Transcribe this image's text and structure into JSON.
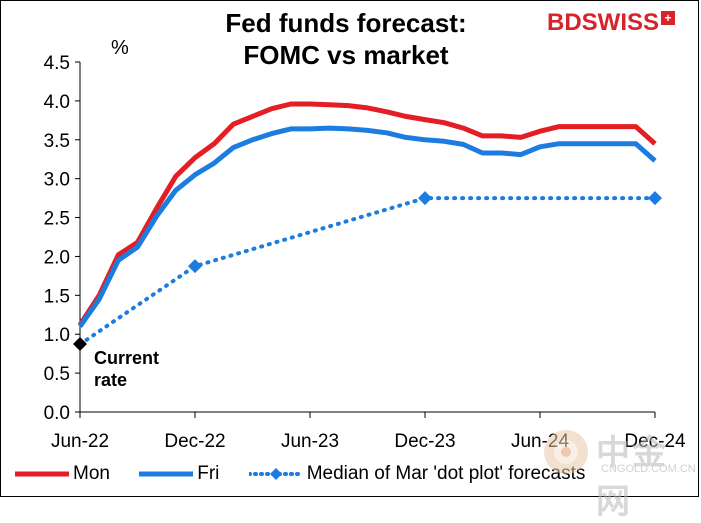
{
  "title_line1": "Fed funds forecast:",
  "title_line2": "FOMC vs market",
  "unit": "%",
  "logo": {
    "text": "BDSWISS",
    "mark": "+"
  },
  "watermark": {
    "text": "中金网",
    "sub": "CNGOLD.COM.CN"
  },
  "colors": {
    "mon": "#e31e24",
    "fri": "#1c7ce0",
    "median": "#1c7ce0",
    "current": "#000000"
  },
  "chart_data": {
    "type": "line",
    "ylabel": "%",
    "ylim": [
      0,
      4.5
    ],
    "yticks": [
      0.0,
      0.5,
      1.0,
      1.5,
      2.0,
      2.5,
      3.0,
      3.5,
      4.0,
      4.5
    ],
    "ytick_labels": [
      "0.0",
      "0.5",
      "1.0",
      "1.5",
      "2.0",
      "2.5",
      "3.0",
      "3.5",
      "4.0",
      "4.5"
    ],
    "xlim": [
      0,
      30
    ],
    "xticks": [
      0,
      6,
      12,
      18,
      24,
      30
    ],
    "xtick_labels": [
      "Jun-22",
      "Dec-22",
      "Jun-23",
      "Dec-23",
      "Jun-24",
      "Dec-24"
    ],
    "series": [
      {
        "name": "Mon",
        "style": "solid",
        "x": [
          0,
          1,
          2,
          3,
          4,
          5,
          6,
          7,
          8,
          9,
          10,
          11,
          12,
          13,
          14,
          15,
          16,
          17,
          18,
          19,
          20,
          21,
          22,
          23,
          24,
          25,
          26,
          27,
          28,
          29,
          30
        ],
        "y": [
          1.12,
          1.5,
          2.02,
          2.18,
          2.62,
          3.03,
          3.27,
          3.45,
          3.7,
          3.8,
          3.9,
          3.96,
          3.96,
          3.95,
          3.94,
          3.91,
          3.86,
          3.8,
          3.76,
          3.72,
          3.65,
          3.55,
          3.55,
          3.53,
          3.61,
          3.67,
          3.67,
          3.67,
          3.67,
          3.67,
          3.45
        ]
      },
      {
        "name": "Fri",
        "style": "solid",
        "x": [
          0,
          1,
          2,
          3,
          4,
          5,
          6,
          7,
          8,
          9,
          10,
          11,
          12,
          13,
          14,
          15,
          16,
          17,
          18,
          19,
          20,
          21,
          22,
          23,
          24,
          25,
          26,
          27,
          28,
          29,
          30
        ],
        "y": [
          1.1,
          1.45,
          1.95,
          2.12,
          2.52,
          2.85,
          3.05,
          3.2,
          3.4,
          3.5,
          3.58,
          3.64,
          3.64,
          3.65,
          3.64,
          3.62,
          3.59,
          3.53,
          3.5,
          3.48,
          3.44,
          3.33,
          3.33,
          3.31,
          3.41,
          3.45,
          3.45,
          3.45,
          3.45,
          3.45,
          3.23
        ]
      },
      {
        "name": "Median of Mar 'dot plot' forecasts",
        "style": "dotted",
        "markers": "diamond",
        "marker_x": [
          6,
          18,
          30
        ],
        "x": [
          0,
          6,
          18,
          30
        ],
        "y": [
          0.87,
          1.875,
          2.75,
          2.75
        ]
      }
    ],
    "annotations": [
      {
        "label": "Current rate",
        "line1": "Current",
        "line2": "rate",
        "x": 0,
        "y": 0.875
      }
    ]
  }
}
